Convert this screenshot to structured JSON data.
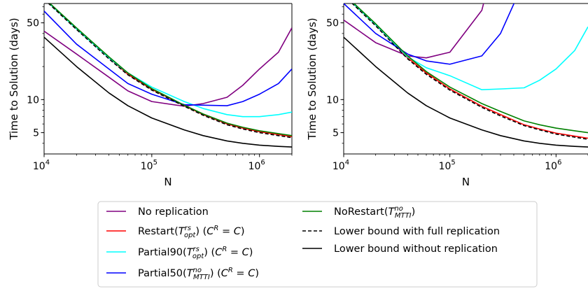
{
  "colors": {
    "No replication": "#800080",
    "Restart": "#ff0000",
    "Partial90": "#00ffff",
    "Partial50": "#0000ff",
    "NoRestart": "#008000",
    "Lower bound with full replication": "#000000",
    "Lower bound without replication": "#000000"
  },
  "legend": {
    "items": [
      {
        "key": "noreplication",
        "text": "No replication",
        "series": "No replication",
        "dash": false
      },
      {
        "key": "restart",
        "text": "Restart(T_opt^rs) (C^R = C)",
        "series": "Restart",
        "dash": false
      },
      {
        "key": "partial90",
        "text": "Partial90(T_opt^rs) (C^R = C)",
        "series": "Partial90",
        "dash": false
      },
      {
        "key": "partial50",
        "text": "Partial50(T_MTTI^no) (C^R = C)",
        "series": "Partial50",
        "dash": false
      },
      {
        "key": "norestart",
        "text": "NoRestart(T_MTTI^no)",
        "series": "NoRestart",
        "dash": false
      },
      {
        "key": "lbfull",
        "text": "Lower bound with full replication",
        "series": "Lower bound with full replication",
        "dash": true
      },
      {
        "key": "lbnone",
        "text": "Lower bound without replication",
        "series": "Lower bound without replication",
        "dash": false
      }
    ]
  },
  "chart_data": [
    {
      "type": "line",
      "xscale": "log",
      "yscale": "log",
      "xlabel": "N",
      "ylabel": "Time to Solution (days)",
      "xlim": [
        10000,
        2000000
      ],
      "ylim": [
        3.2,
        75
      ],
      "xticks": [
        10000,
        100000,
        1000000
      ],
      "xtick_labels": [
        "10^4",
        "10^5",
        "10^6"
      ],
      "yticks": [
        5,
        10,
        50
      ],
      "ytick_labels": [
        "5",
        "10",
        "50"
      ],
      "series": [
        {
          "name": "No replication",
          "x": [
            10000,
            20000,
            40000,
            60000,
            100000,
            200000,
            300000,
            500000,
            700000,
            1000000,
            1500000,
            2000000
          ],
          "y": [
            42,
            26,
            16,
            12,
            9.6,
            8.7,
            9.2,
            10.5,
            13.5,
            19,
            27,
            45
          ]
        },
        {
          "name": "Restart",
          "x": [
            10000,
            20000,
            40000,
            60000,
            100000,
            200000,
            300000,
            500000,
            700000,
            1000000,
            1500000,
            2000000
          ],
          "y": [
            83,
            44,
            24,
            17,
            12.4,
            8.8,
            7.3,
            6.0,
            5.5,
            5.1,
            4.8,
            4.6
          ]
        },
        {
          "name": "Partial90",
          "x": [
            10000,
            20000,
            40000,
            60000,
            100000,
            200000,
            300000,
            500000,
            700000,
            1000000,
            1500000,
            2000000
          ],
          "y": [
            83,
            44,
            24,
            17.5,
            13.0,
            9.6,
            8.3,
            7.3,
            7.0,
            7.0,
            7.3,
            7.7
          ]
        },
        {
          "name": "Partial50",
          "x": [
            10000,
            20000,
            40000,
            60000,
            100000,
            200000,
            300000,
            500000,
            700000,
            1000000,
            1500000,
            2000000
          ],
          "y": [
            64,
            32,
            19,
            14,
            11.2,
            9.0,
            8.9,
            8.8,
            9.6,
            11.2,
            14,
            19
          ]
        },
        {
          "name": "NoRestart",
          "x": [
            10000,
            20000,
            40000,
            60000,
            100000,
            200000,
            300000,
            500000,
            700000,
            1000000,
            1500000,
            2000000
          ],
          "y": [
            84,
            45,
            24.5,
            17.5,
            12.6,
            8.9,
            7.4,
            6.1,
            5.6,
            5.2,
            4.9,
            4.7
          ]
        },
        {
          "name": "Lower bound with full replication",
          "x": [
            10000,
            20000,
            40000,
            60000,
            100000,
            200000,
            300000,
            500000,
            700000,
            1000000,
            1500000,
            2000000
          ],
          "y": [
            82,
            43.5,
            23.5,
            16.8,
            12.2,
            8.7,
            7.2,
            5.9,
            5.4,
            5.0,
            4.7,
            4.5
          ]
        },
        {
          "name": "Lower bound without replication",
          "x": [
            10000,
            20000,
            40000,
            60000,
            100000,
            200000,
            300000,
            500000,
            700000,
            1000000,
            1500000,
            2000000
          ],
          "y": [
            37,
            20,
            11.5,
            8.8,
            6.8,
            5.3,
            4.7,
            4.2,
            4.0,
            3.85,
            3.75,
            3.7
          ]
        }
      ]
    },
    {
      "type": "line",
      "xscale": "log",
      "yscale": "log",
      "xlabel": "N",
      "ylabel": "Time to Solution (days)",
      "xlim": [
        10000,
        2000000
      ],
      "ylim": [
        3.2,
        75
      ],
      "xticks": [
        10000,
        100000,
        1000000
      ],
      "xtick_labels": [
        "10^4",
        "10^5",
        "10^6"
      ],
      "yticks": [
        5,
        10,
        50
      ],
      "ytick_labels": [
        "5",
        "10",
        "50"
      ],
      "series": [
        {
          "name": "No replication",
          "x": [
            10000,
            20000,
            40000,
            60000,
            100000,
            200000,
            300000
          ],
          "y": [
            53,
            33,
            25,
            24,
            27,
            65,
            300
          ]
        },
        {
          "name": "Restart",
          "x": [
            10000,
            20000,
            40000,
            60000,
            100000,
            200000,
            300000,
            500000,
            700000,
            1000000,
            1500000,
            2000000
          ],
          "y": [
            90,
            48,
            24,
            17.5,
            12.5,
            8.7,
            7.3,
            5.9,
            5.4,
            4.95,
            4.65,
            4.45
          ]
        },
        {
          "name": "Partial90",
          "x": [
            10000,
            20000,
            40000,
            60000,
            100000,
            200000,
            300000,
            500000,
            700000,
            1000000,
            1500000,
            2000000
          ],
          "y": [
            90,
            48,
            24.5,
            19.5,
            16.5,
            12.3,
            12.5,
            12.8,
            15,
            19,
            28,
            46
          ]
        },
        {
          "name": "Partial50",
          "x": [
            10000,
            20000,
            40000,
            60000,
            100000,
            200000,
            300000,
            500000
          ],
          "y": [
            75,
            40,
            26,
            22.5,
            21,
            25,
            40,
            120
          ]
        },
        {
          "name": "NoRestart",
          "x": [
            10000,
            20000,
            40000,
            60000,
            100000,
            200000,
            300000,
            500000,
            700000,
            1000000,
            1500000,
            2000000
          ],
          "y": [
            92,
            49,
            25,
            18,
            13,
            9.2,
            7.8,
            6.4,
            5.9,
            5.5,
            5.2,
            5.0
          ]
        },
        {
          "name": "Lower bound with full replication",
          "x": [
            10000,
            20000,
            40000,
            60000,
            100000,
            200000,
            300000,
            500000,
            700000,
            1000000,
            1500000,
            2000000
          ],
          "y": [
            89,
            47,
            23.5,
            17,
            12.2,
            8.5,
            7.1,
            5.8,
            5.3,
            4.85,
            4.55,
            4.35
          ]
        },
        {
          "name": "Lower bound without replication",
          "x": [
            10000,
            20000,
            40000,
            60000,
            100000,
            200000,
            300000,
            500000,
            700000,
            1000000,
            1500000,
            2000000
          ],
          "y": [
            37,
            20,
            11.5,
            8.8,
            6.8,
            5.3,
            4.7,
            4.2,
            4.0,
            3.85,
            3.75,
            3.7
          ]
        }
      ]
    }
  ]
}
